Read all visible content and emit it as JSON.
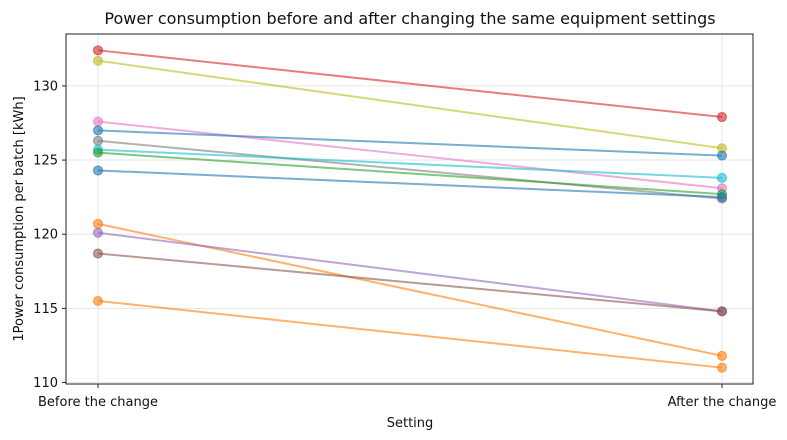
{
  "chart_data": {
    "type": "line",
    "title": "Power consumption before and after changing the same equipment settings",
    "xlabel": "Setting",
    "ylabel": "1Power consumption per batch [kWh]",
    "categories": [
      "Before the change",
      "After the change"
    ],
    "ylim": [
      109.9,
      133.5
    ],
    "yticks": [
      110,
      115,
      120,
      125,
      130
    ],
    "grid": true,
    "series": [
      {
        "values": [
          132.4,
          127.9
        ],
        "color": "#d62728"
      },
      {
        "values": [
          131.7,
          125.8
        ],
        "color": "#bcbd22"
      },
      {
        "values": [
          127.6,
          123.1
        ],
        "color": "#e377c2"
      },
      {
        "values": [
          127.0,
          125.3
        ],
        "color": "#1f77b4"
      },
      {
        "values": [
          126.3,
          122.4
        ],
        "color": "#7f7f7f"
      },
      {
        "values": [
          125.7,
          123.8
        ],
        "color": "#17becf"
      },
      {
        "values": [
          125.5,
          122.7
        ],
        "color": "#2ca02c"
      },
      {
        "values": [
          124.3,
          122.5
        ],
        "color": "#1f77b4"
      },
      {
        "values": [
          120.7,
          111.8
        ],
        "color": "#ff7f0e"
      },
      {
        "values": [
          120.1,
          114.8
        ],
        "color": "#9467bd"
      },
      {
        "values": [
          118.7,
          114.8
        ],
        "color": "#8c564b"
      },
      {
        "values": [
          115.5,
          111.0
        ],
        "color": "#ff7f0e"
      }
    ]
  }
}
